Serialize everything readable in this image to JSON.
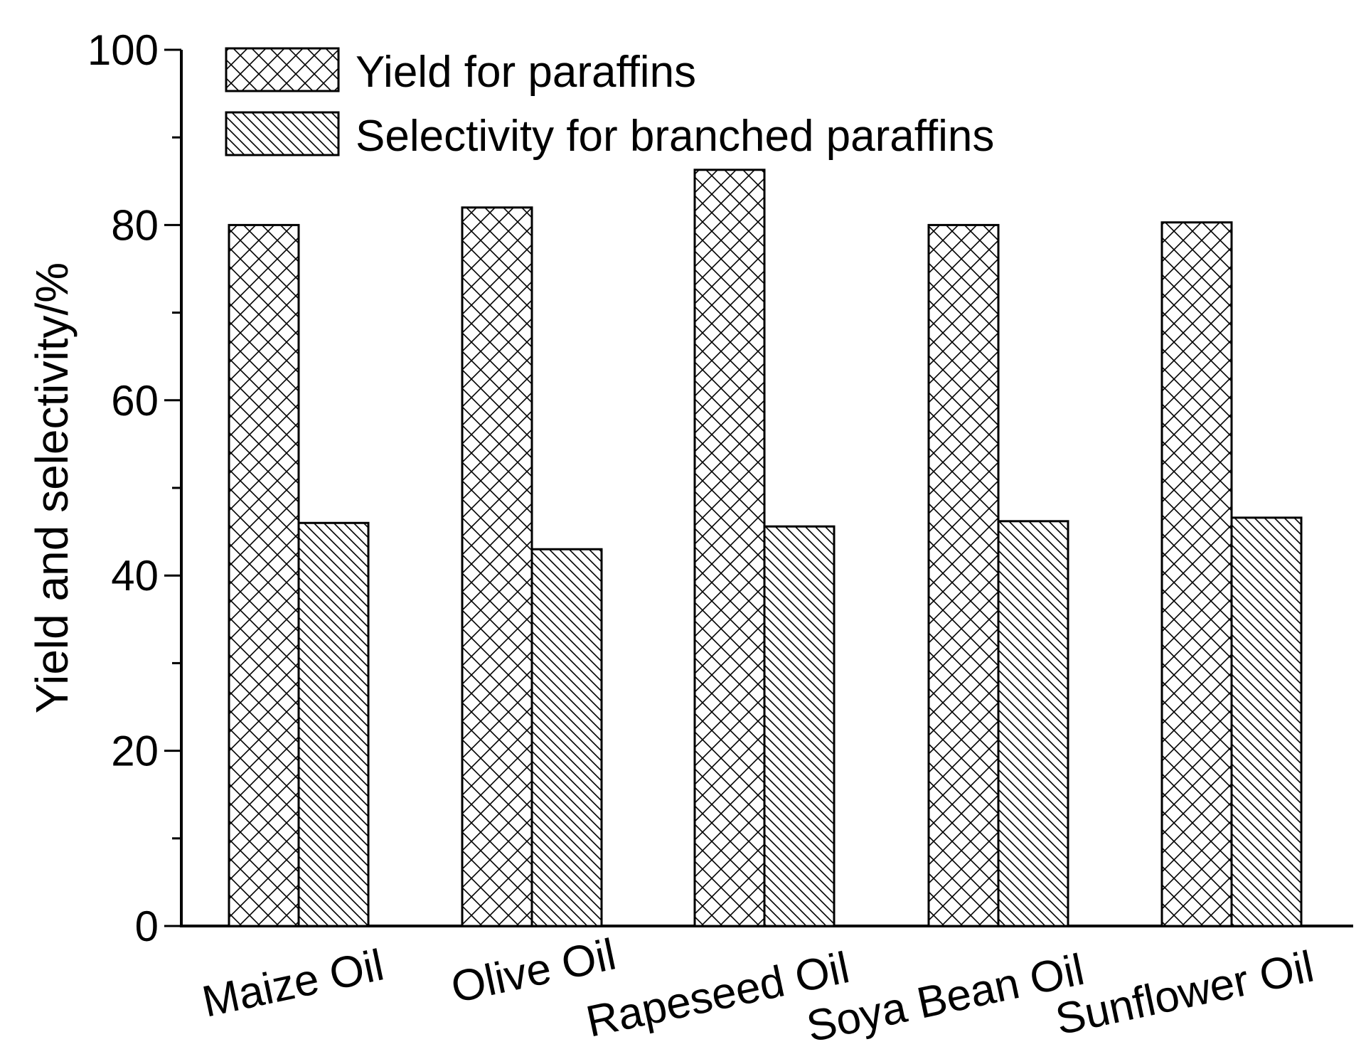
{
  "chart_data": {
    "type": "bar",
    "title": "",
    "xlabel": "",
    "ylabel": "Yield and selectivity/%",
    "ylim": [
      0,
      100
    ],
    "yticks": [
      0,
      20,
      40,
      60,
      80,
      100
    ],
    "categories": [
      "Maize Oil",
      "Olive Oil",
      "Rapeseed Oil",
      "Soya Bean Oil",
      "Sunflower Oil"
    ],
    "series": [
      {
        "name": "Yield for paraffins",
        "pattern": "crosshatch",
        "values": [
          80,
          82,
          86.3,
          80,
          80.3
        ]
      },
      {
        "name": "Selectivity for branched paraffins",
        "pattern": "diagonal",
        "values": [
          46,
          43,
          45.6,
          46.2,
          46.6
        ]
      }
    ],
    "legend_position": "top-left",
    "grid": false
  }
}
